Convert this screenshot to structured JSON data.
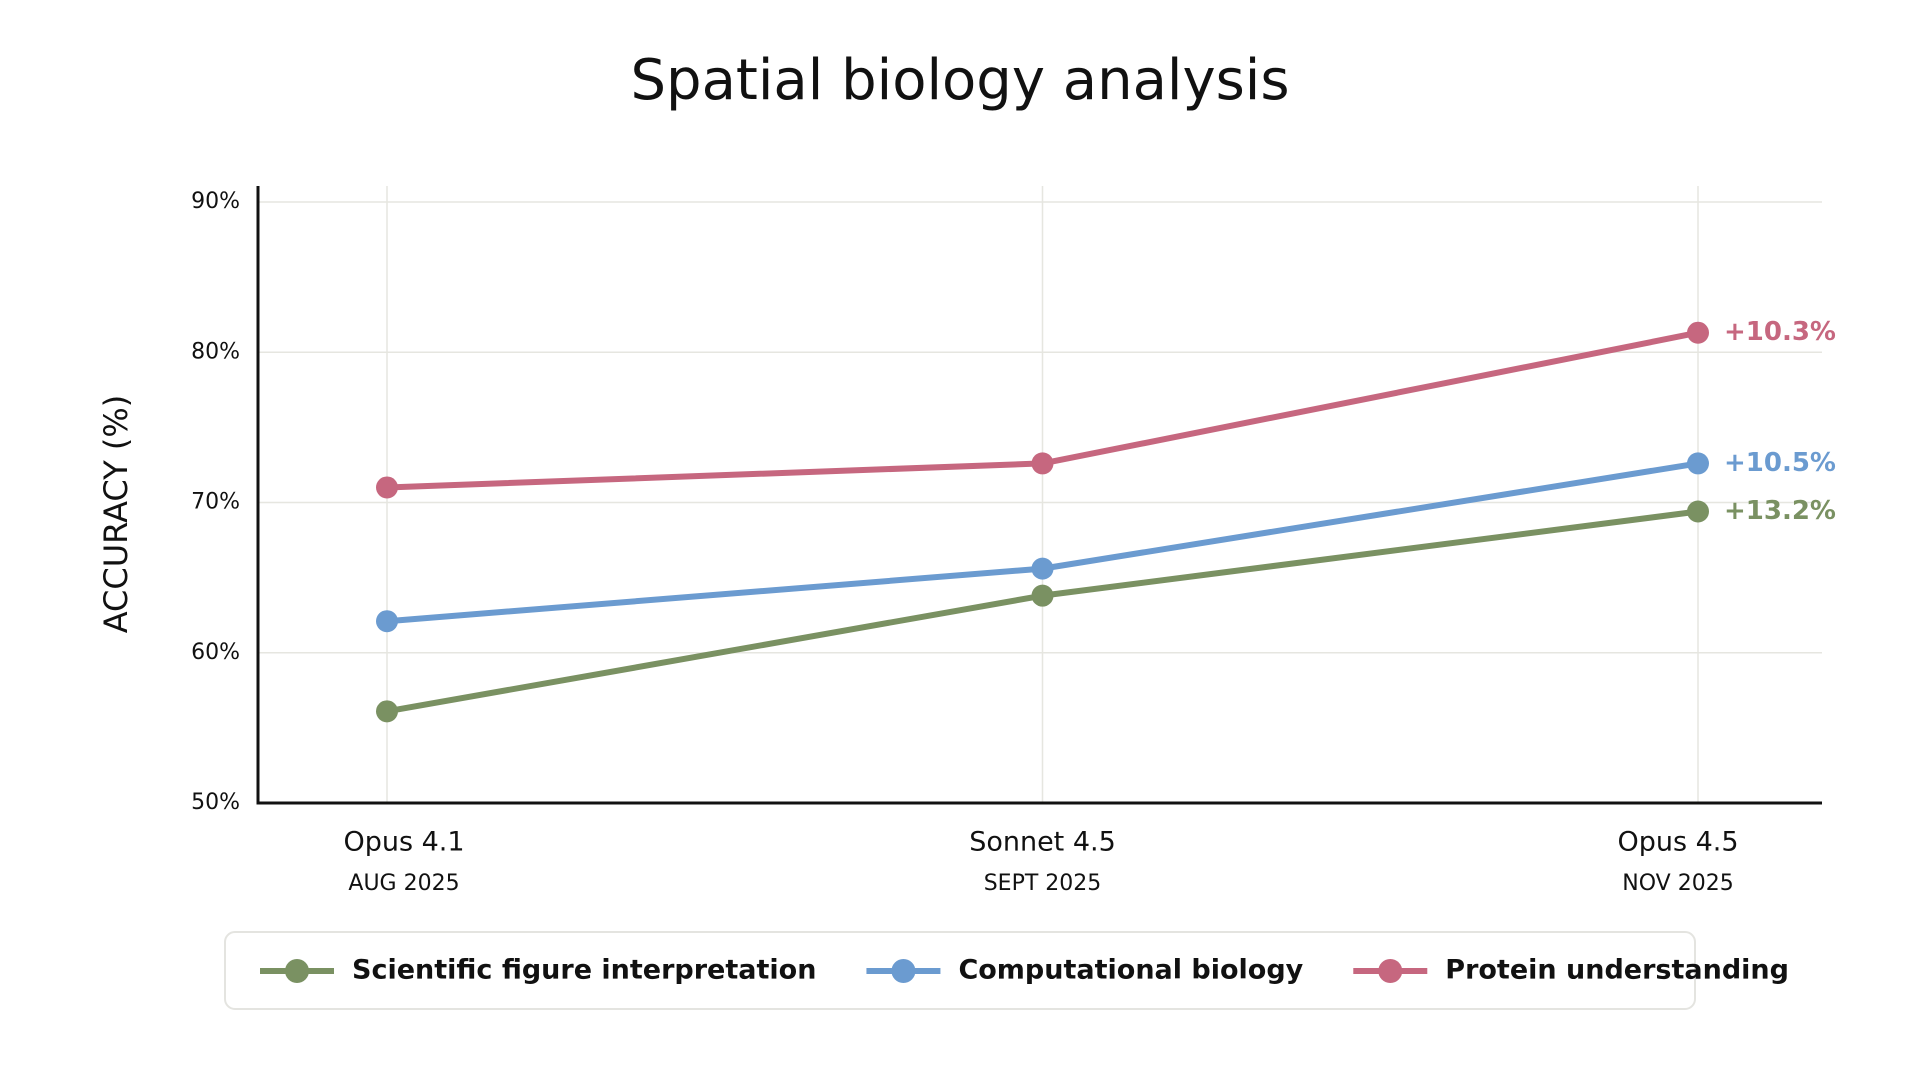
{
  "chart_data": {
    "type": "line",
    "title": "Spatial biology analysis",
    "y_label": "ACCURACY (%)",
    "categories": [
      "Opus 4.1",
      "Sonnet 4.5",
      "Opus 4.5"
    ],
    "category_dates": [
      "AUG 2025",
      "SEPT 2025",
      "NOV 2025"
    ],
    "ylim": [
      50,
      90
    ],
    "yticks": [
      {
        "value": 50,
        "label": "50%"
      },
      {
        "value": 60,
        "label": "60%"
      },
      {
        "value": 70,
        "label": "70%"
      },
      {
        "value": 80,
        "label": "80%"
      },
      {
        "value": 90,
        "label": "90%"
      }
    ],
    "grid": true,
    "series": [
      {
        "name": "Scientific figure interpretation",
        "color": "#7a9162",
        "values": [
          56.1,
          63.8,
          69.4
        ],
        "end_label": "+13.2%"
      },
      {
        "name": "Computational biology",
        "color": "#6b9bd0",
        "values": [
          62.1,
          65.6,
          72.6
        ],
        "end_label": "+10.5%"
      },
      {
        "name": "Protein understanding",
        "color": "#c6677f",
        "values": [
          71.0,
          72.6,
          81.3
        ],
        "end_label": "+10.3%"
      }
    ]
  }
}
